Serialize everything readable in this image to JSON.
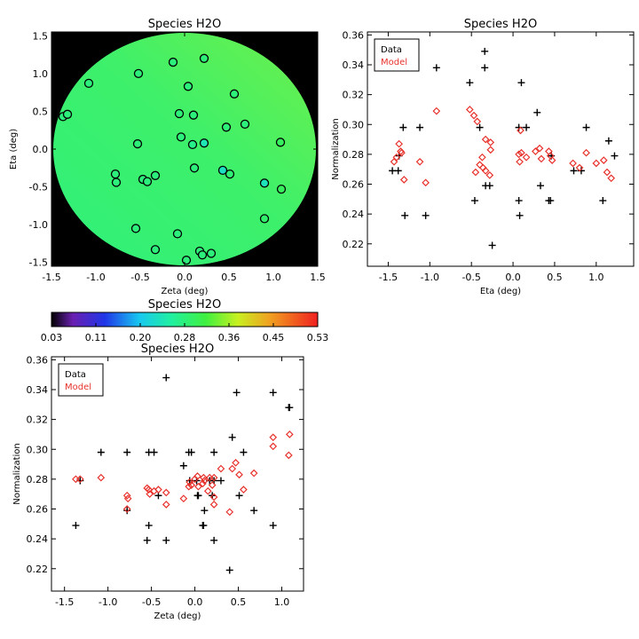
{
  "colors": {
    "data": "#000000",
    "model": "#e8322c",
    "frame": "#000000",
    "background_disk": "#000000"
  },
  "colorbar": {
    "title": "Species H2O",
    "ticks": [
      "0.03",
      "0.11",
      "0.20",
      "0.28",
      "0.36",
      "0.45",
      "0.53"
    ],
    "range": [
      0.03,
      0.53
    ]
  },
  "legend": {
    "data_label": "Data",
    "model_label": "Model"
  },
  "chart_data": [
    {
      "type": "scatter",
      "title": "Species H2O",
      "xlabel": "Zeta (deg)",
      "ylabel": "Eta (deg)",
      "xlim": [
        -1.5,
        1.5
      ],
      "ylim": [
        -1.55,
        1.55
      ],
      "xticks": [
        "-1.5",
        "-1.0",
        "-0.5",
        "0.0",
        "0.5",
        "1.0",
        "1.5"
      ],
      "yticks": [
        "-1.5",
        "-1.0",
        "-0.5",
        "0.0",
        "0.5",
        "1.0",
        "1.5"
      ],
      "background": "filled disk map, green gradient (value ≈0.28–0.30) on black",
      "points": [
        [
          -1.37,
          0.43
        ],
        [
          -1.32,
          0.46
        ],
        [
          -1.08,
          0.87
        ],
        [
          -0.78,
          -0.33
        ],
        [
          -0.77,
          -0.44
        ],
        [
          -0.52,
          1.0
        ],
        [
          -0.53,
          0.07
        ],
        [
          -0.47,
          -0.4
        ],
        [
          -0.42,
          -0.43
        ],
        [
          -0.33,
          -0.35
        ],
        [
          -0.55,
          -1.05
        ],
        [
          -0.33,
          -1.33
        ],
        [
          -0.13,
          1.15
        ],
        [
          -0.06,
          0.47
        ],
        [
          -0.08,
          -1.12
        ],
        [
          -0.04,
          0.16
        ],
        [
          0.04,
          0.83
        ],
        [
          0.09,
          0.06
        ],
        [
          0.1,
          0.45
        ],
        [
          0.11,
          -0.25
        ],
        [
          0.22,
          1.2
        ],
        [
          0.22,
          0.08
        ],
        [
          0.43,
          -0.28
        ],
        [
          0.47,
          0.29
        ],
        [
          0.56,
          0.73
        ],
        [
          0.68,
          0.33
        ],
        [
          0.51,
          -0.33
        ],
        [
          0.9,
          -0.45
        ],
        [
          0.9,
          -0.92
        ],
        [
          1.08,
          0.09
        ],
        [
          1.09,
          -0.53
        ],
        [
          0.17,
          -1.35
        ],
        [
          0.2,
          -1.4
        ],
        [
          0.3,
          -1.38
        ],
        [
          0.02,
          -1.47
        ]
      ],
      "point_values": [
        0.28,
        0.28,
        0.28,
        0.28,
        0.28,
        0.281,
        0.282,
        0.28,
        0.28,
        0.28,
        0.28,
        0.28,
        0.28,
        0.282,
        0.28,
        0.28,
        0.28,
        0.27,
        0.28,
        0.28,
        0.282,
        0.24,
        0.23,
        0.282,
        0.282,
        0.28,
        0.284,
        0.235,
        0.29,
        0.3,
        0.3,
        0.28,
        0.28,
        0.28,
        0.28
      ]
    },
    {
      "type": "scatter",
      "title": "Species H2O",
      "xlabel": "Eta (deg)",
      "ylabel": "Normalization",
      "xlim": [
        -1.75,
        1.45
      ],
      "ylim": [
        0.205,
        0.362
      ],
      "xticks": [
        "-1.5",
        "-1.0",
        "-0.5",
        "0.0",
        "0.5",
        "1.0"
      ],
      "yticks": [
        "0.22",
        "0.24",
        "0.26",
        "0.28",
        "0.30",
        "0.32",
        "0.34",
        "0.36"
      ],
      "series": [
        {
          "name": "Data",
          "marker": "plus",
          "points": [
            [
              -1.45,
              0.269
            ],
            [
              -1.38,
              0.269
            ],
            [
              -1.37,
              0.279
            ],
            [
              -1.32,
              0.298
            ],
            [
              -1.3,
              0.239
            ],
            [
              -1.12,
              0.298
            ],
            [
              -1.05,
              0.239
            ],
            [
              -0.92,
              0.338
            ],
            [
              -0.52,
              0.328
            ],
            [
              -0.46,
              0.249
            ],
            [
              -0.4,
              0.298
            ],
            [
              -0.34,
              0.349
            ],
            [
              -0.34,
              0.338
            ],
            [
              -0.33,
              0.259
            ],
            [
              -0.28,
              0.259
            ],
            [
              -0.25,
              0.219
            ],
            [
              0.07,
              0.298
            ],
            [
              0.07,
              0.249
            ],
            [
              0.08,
              0.239
            ],
            [
              0.1,
              0.328
            ],
            [
              0.16,
              0.298
            ],
            [
              0.29,
              0.308
            ],
            [
              0.33,
              0.259
            ],
            [
              0.43,
              0.249
            ],
            [
              0.45,
              0.249
            ],
            [
              0.46,
              0.279
            ],
            [
              0.73,
              0.269
            ],
            [
              0.82,
              0.269
            ],
            [
              0.88,
              0.298
            ],
            [
              1.08,
              0.249
            ],
            [
              1.15,
              0.289
            ],
            [
              1.22,
              0.279
            ]
          ]
        },
        {
          "name": "Model",
          "marker": "diamond",
          "points": [
            [
              -1.43,
              0.275
            ],
            [
              -1.4,
              0.278
            ],
            [
              -1.37,
              0.287
            ],
            [
              -1.35,
              0.282
            ],
            [
              -1.34,
              0.281
            ],
            [
              -1.31,
              0.263
            ],
            [
              -1.12,
              0.275
            ],
            [
              -1.05,
              0.261
            ],
            [
              -0.92,
              0.309
            ],
            [
              -0.52,
              0.31
            ],
            [
              -0.47,
              0.306
            ],
            [
              -0.43,
              0.302
            ],
            [
              -0.45,
              0.268
            ],
            [
              -0.4,
              0.273
            ],
            [
              -0.36,
              0.271
            ],
            [
              -0.33,
              0.29
            ],
            [
              -0.37,
              0.278
            ],
            [
              -0.33,
              0.269
            ],
            [
              -0.27,
              0.288
            ],
            [
              -0.27,
              0.283
            ],
            [
              -0.28,
              0.266
            ],
            [
              0.07,
              0.28
            ],
            [
              0.08,
              0.275
            ],
            [
              0.09,
              0.296
            ],
            [
              0.1,
              0.281
            ],
            [
              0.16,
              0.278
            ],
            [
              0.27,
              0.282
            ],
            [
              0.32,
              0.284
            ],
            [
              0.34,
              0.277
            ],
            [
              0.43,
              0.282
            ],
            [
              0.45,
              0.279
            ],
            [
              0.47,
              0.276
            ],
            [
              0.72,
              0.274
            ],
            [
              0.8,
              0.271
            ],
            [
              0.88,
              0.281
            ],
            [
              1.0,
              0.274
            ],
            [
              1.13,
              0.268
            ],
            [
              1.18,
              0.264
            ],
            [
              1.09,
              0.276
            ]
          ]
        }
      ],
      "legend": "top-left"
    },
    {
      "type": "scatter",
      "title": "Species H2O",
      "xlabel": "Zeta (deg)",
      "ylabel": "Normalization",
      "xlim": [
        -1.65,
        1.25
      ],
      "ylim": [
        0.205,
        0.362
      ],
      "xticks": [
        "-1.5",
        "-1.0",
        "-0.5",
        "0.0",
        "0.5",
        "1.0"
      ],
      "yticks": [
        "0.22",
        "0.24",
        "0.26",
        "0.28",
        "0.30",
        "0.32",
        "0.34",
        "0.36"
      ],
      "series": [
        {
          "name": "Data",
          "marker": "plus",
          "points": [
            [
              -1.37,
              0.249
            ],
            [
              -1.32,
              0.279
            ],
            [
              -1.08,
              0.298
            ],
            [
              -0.78,
              0.298
            ],
            [
              -0.78,
              0.259
            ],
            [
              -0.55,
              0.239
            ],
            [
              -0.53,
              0.249
            ],
            [
              -0.53,
              0.298
            ],
            [
              -0.47,
              0.298
            ],
            [
              -0.42,
              0.269
            ],
            [
              -0.33,
              0.239
            ],
            [
              -0.33,
              0.348
            ],
            [
              -0.13,
              0.289
            ],
            [
              -0.07,
              0.298
            ],
            [
              -0.04,
              0.298
            ],
            [
              -0.06,
              0.279
            ],
            [
              0.03,
              0.269
            ],
            [
              0.04,
              0.269
            ],
            [
              0.09,
              0.249
            ],
            [
              0.1,
              0.249
            ],
            [
              0.11,
              0.259
            ],
            [
              0.17,
              0.279
            ],
            [
              0.2,
              0.269
            ],
            [
              0.22,
              0.239
            ],
            [
              0.22,
              0.298
            ],
            [
              0.22,
              0.279
            ],
            [
              0.3,
              0.279
            ],
            [
              0.43,
              0.308
            ],
            [
              0.48,
              0.338
            ],
            [
              0.51,
              0.269
            ],
            [
              0.56,
              0.298
            ],
            [
              0.68,
              0.259
            ],
            [
              0.9,
              0.249
            ],
            [
              0.9,
              0.338
            ],
            [
              1.08,
              0.328
            ],
            [
              1.09,
              0.328
            ],
            [
              0.4,
              0.219
            ],
            [
              0.02,
              0.279
            ]
          ]
        },
        {
          "name": "Model",
          "marker": "diamond",
          "points": [
            [
              -1.37,
              0.28
            ],
            [
              -1.32,
              0.28
            ],
            [
              -1.08,
              0.281
            ],
            [
              -0.78,
              0.269
            ],
            [
              -0.77,
              0.267
            ],
            [
              -0.55,
              0.274
            ],
            [
              -0.53,
              0.273
            ],
            [
              -0.47,
              0.272
            ],
            [
              -0.42,
              0.273
            ],
            [
              -0.33,
              0.271
            ],
            [
              -0.33,
              0.263
            ],
            [
              -0.13,
              0.267
            ],
            [
              -0.07,
              0.275
            ],
            [
              -0.04,
              0.276
            ],
            [
              -0.06,
              0.278
            ],
            [
              0.03,
              0.282
            ],
            [
              0.04,
              0.275
            ],
            [
              0.09,
              0.277
            ],
            [
              0.1,
              0.281
            ],
            [
              0.11,
              0.279
            ],
            [
              0.17,
              0.281
            ],
            [
              0.2,
              0.276
            ],
            [
              0.22,
              0.281
            ],
            [
              0.22,
              0.268
            ],
            [
              0.22,
              0.263
            ],
            [
              0.3,
              0.287
            ],
            [
              0.43,
              0.287
            ],
            [
              0.47,
              0.291
            ],
            [
              0.51,
              0.283
            ],
            [
              0.56,
              0.273
            ],
            [
              0.68,
              0.284
            ],
            [
              0.9,
              0.308
            ],
            [
              0.9,
              0.302
            ],
            [
              1.08,
              0.296
            ],
            [
              1.09,
              0.31
            ],
            [
              0.4,
              0.258
            ],
            [
              0.0,
              0.28
            ],
            [
              -0.78,
              0.26
            ],
            [
              -0.52,
              0.27
            ],
            [
              0.15,
              0.272
            ]
          ]
        }
      ],
      "legend": "top-left"
    }
  ]
}
